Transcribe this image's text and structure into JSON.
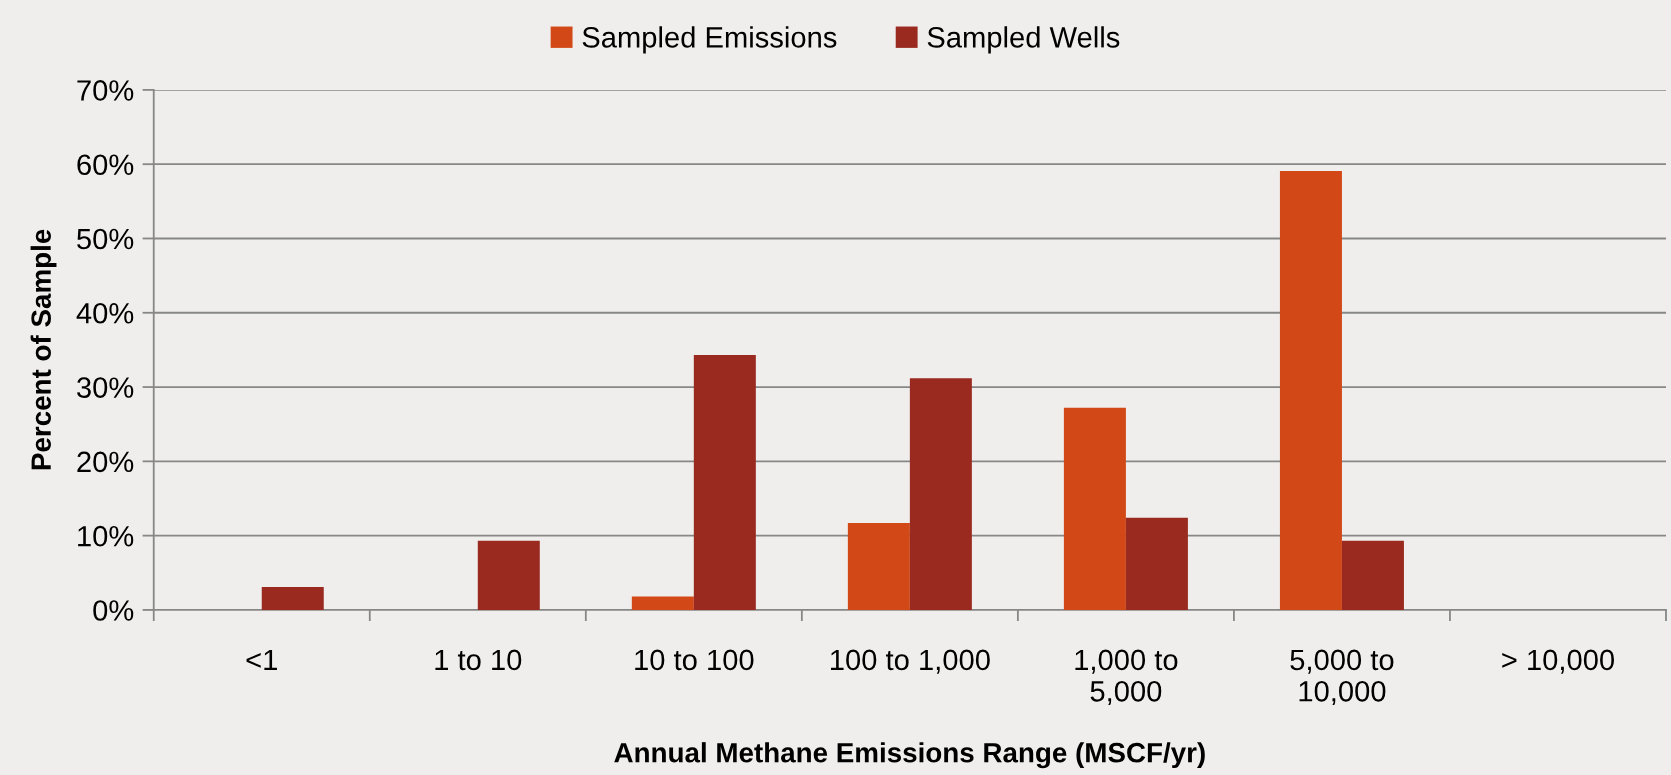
{
  "chart_data": {
    "type": "bar",
    "xlabel": "Annual Methane Emissions Range (MSCF/yr)",
    "ylabel": "Percent of Sample",
    "categories": [
      "<1",
      "1 to 10",
      "10 to 100",
      "100 to 1,000",
      "1,000 to\n5,000",
      "5,000 to\n10,000",
      "> 10,000"
    ],
    "series": [
      {
        "name": "Sampled Emissions",
        "color": "#d24817",
        "values": [
          0,
          0,
          1.8,
          11.7,
          27.2,
          59.1,
          0
        ]
      },
      {
        "name": "Sampled Wells",
        "color": "#9a2a1f",
        "values": [
          3.1,
          9.3,
          34.3,
          31.2,
          12.4,
          9.3,
          0
        ]
      }
    ],
    "ylim": [
      0,
      70
    ],
    "yticks": [
      {
        "value": 0,
        "label": "0%"
      },
      {
        "value": 10,
        "label": "10%"
      },
      {
        "value": 20,
        "label": "20%"
      },
      {
        "value": 30,
        "label": "30%"
      },
      {
        "value": 40,
        "label": "40%"
      },
      {
        "value": 50,
        "label": "50%"
      },
      {
        "value": 60,
        "label": "60%"
      },
      {
        "value": 70,
        "label": "70%"
      }
    ],
    "grid": "y",
    "legend": "top"
  }
}
